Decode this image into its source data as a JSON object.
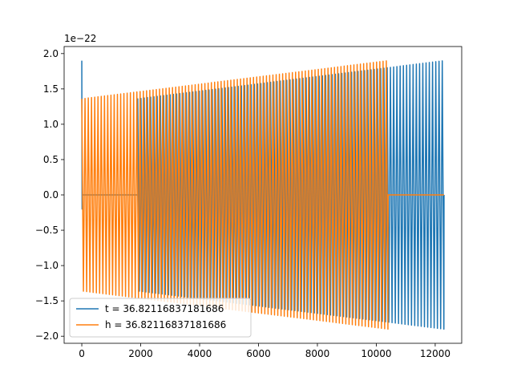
{
  "chart_data": {
    "type": "line",
    "title": "",
    "xlabel": "",
    "ylabel": "",
    "y_offset_text": "1e−22",
    "y_scale": 1e-22,
    "xlim": [
      -600,
      12900
    ],
    "ylim": [
      -2.1,
      2.1
    ],
    "x_ticks": [
      0,
      2000,
      4000,
      6000,
      8000,
      10000,
      12000
    ],
    "x_tick_labels": [
      "0",
      "2000",
      "4000",
      "6000",
      "8000",
      "10000",
      "12000"
    ],
    "y_ticks": [
      2.0,
      1.5,
      1.0,
      0.5,
      0.0,
      -0.5,
      -1.0,
      -1.5,
      -2.0
    ],
    "y_tick_labels": [
      "2.0",
      "1.5",
      "1.0",
      "0.5",
      "0.0",
      "−0.5",
      "−1.0",
      "−1.5",
      "−2.0"
    ],
    "grid": false,
    "legend_position": "lower-left",
    "series": [
      {
        "name": "t = 36.82116837181686",
        "color": "#1f77b4",
        "x_range": [
          0,
          12300
        ],
        "segments": [
          {
            "x_start": 0,
            "x_end": 10,
            "kind": "spike",
            "y_start": 1.9,
            "y_end": -0.2
          },
          {
            "x_start": 10,
            "x_end": 1900,
            "kind": "flat",
            "value": 0.0
          },
          {
            "x_start": 1900,
            "x_end": 12300,
            "kind": "oscillation",
            "amp_start": 1.36,
            "amp_end": 1.9,
            "period": 110
          }
        ]
      },
      {
        "name": "h = 36.82116837181686",
        "color": "#ff7f0e",
        "x_range": [
          0,
          12300
        ],
        "segments": [
          {
            "x_start": 0,
            "x_end": 10400,
            "kind": "oscillation",
            "amp_start": 1.36,
            "amp_end": 1.9,
            "period": 110
          },
          {
            "x_start": 10400,
            "x_end": 12300,
            "kind": "flat",
            "value": 0.0
          }
        ]
      }
    ]
  }
}
